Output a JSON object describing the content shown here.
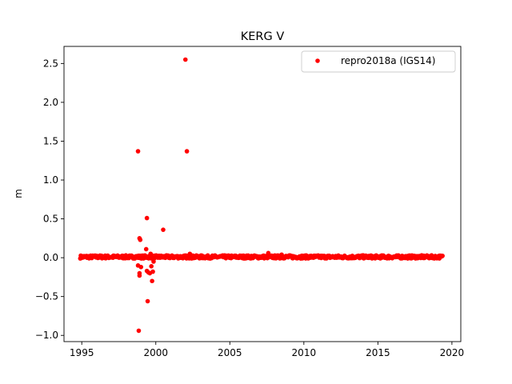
{
  "chart_data": {
    "type": "scatter",
    "title": "KERG V",
    "xlabel": "",
    "ylabel": "m",
    "xlim": [
      1993.8,
      2020.6
    ],
    "ylim": [
      -1.08,
      2.72
    ],
    "xticks": [
      1995,
      2000,
      2005,
      2010,
      2015,
      2020
    ],
    "xtick_labels": [
      "1995",
      "2000",
      "2005",
      "2010",
      "2015",
      "2020"
    ],
    "yticks": [
      -1.0,
      -0.5,
      0.0,
      0.5,
      1.0,
      1.5,
      2.0,
      2.5
    ],
    "ytick_labels": [
      "−1.0",
      "−0.5",
      "0.0",
      "0.5",
      "1.0",
      "1.5",
      "2.0",
      "2.5"
    ],
    "grid": false,
    "legend_position": "upper-right",
    "series": [
      {
        "name": "repro2018a (IGS14)",
        "color": "#ff0000",
        "marker": "circle",
        "baseline": {
          "x_start": 1994.9,
          "x_end": 2019.4,
          "y": 0.01,
          "band": 0.02
        },
        "points": [
          {
            "x": 1998.8,
            "y": 1.37
          },
          {
            "x": 1998.9,
            "y": 0.25
          },
          {
            "x": 1998.95,
            "y": 0.23
          },
          {
            "x": 1998.8,
            "y": -0.1
          },
          {
            "x": 1998.9,
            "y": -0.2
          },
          {
            "x": 1998.9,
            "y": -0.23
          },
          {
            "x": 1999.0,
            "y": -0.12
          },
          {
            "x": 1998.85,
            "y": -0.94
          },
          {
            "x": 1999.4,
            "y": 0.51
          },
          {
            "x": 1999.35,
            "y": 0.11
          },
          {
            "x": 1999.45,
            "y": -0.56
          },
          {
            "x": 1999.4,
            "y": -0.17
          },
          {
            "x": 1999.5,
            "y": -0.19
          },
          {
            "x": 1999.6,
            "y": -0.2
          },
          {
            "x": 1999.7,
            "y": -0.11
          },
          {
            "x": 1999.75,
            "y": -0.3
          },
          {
            "x": 1999.65,
            "y": 0.05
          },
          {
            "x": 1999.8,
            "y": -0.18
          },
          {
            "x": 1999.85,
            "y": -0.05
          },
          {
            "x": 2000.5,
            "y": 0.36
          },
          {
            "x": 2002.0,
            "y": 2.55
          },
          {
            "x": 2002.1,
            "y": 1.37
          },
          {
            "x": 2002.3,
            "y": 0.05
          },
          {
            "x": 2007.6,
            "y": 0.06
          },
          {
            "x": 2008.5,
            "y": 0.04
          }
        ]
      }
    ]
  }
}
